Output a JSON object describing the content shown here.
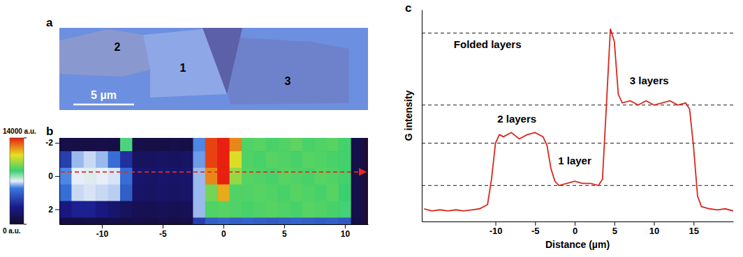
{
  "chart_data": [
    {
      "type": "image",
      "panel_label": "a",
      "region_labels": [
        "2",
        "1",
        "3"
      ],
      "scale_bar": {
        "length": 5,
        "label": "5 µm"
      }
    },
    {
      "type": "heatmap",
      "panel_label": "b",
      "x": [
        -13,
        -12,
        -11,
        -10,
        -9,
        -8,
        -7,
        -6,
        -5,
        -4,
        -3,
        -2,
        -1,
        0,
        1,
        2,
        3,
        4,
        5,
        6,
        7,
        8,
        9,
        10,
        11
      ],
      "y": [
        -2,
        -1,
        0,
        1,
        2,
        3
      ],
      "z": [
        [
          900,
          800,
          800,
          900,
          800,
          8500,
          900,
          800,
          800,
          900,
          800,
          6000,
          13500,
          14000,
          12500,
          9000,
          9100,
          8900,
          9000,
          9200,
          8900,
          9000,
          9100,
          8800,
          900
        ],
        [
          4000,
          6500,
          6800,
          6500,
          5500,
          3500,
          1500,
          1600,
          1700,
          1600,
          1700,
          6200,
          13500,
          14000,
          11000,
          9000,
          8900,
          9100,
          9000,
          8900,
          9100,
          9000,
          8900,
          8800,
          900
        ],
        [
          6000,
          7000,
          7100,
          7000,
          6900,
          5500,
          2000,
          1800,
          1900,
          1800,
          1900,
          6500,
          12500,
          14000,
          10000,
          9100,
          9000,
          8900,
          9100,
          9000,
          8900,
          9100,
          9000,
          8800,
          900
        ],
        [
          5500,
          6800,
          6900,
          6800,
          6700,
          5000,
          1800,
          1700,
          1800,
          1700,
          1800,
          6500,
          9500,
          12000,
          9000,
          9000,
          9100,
          9000,
          8900,
          9100,
          9000,
          8900,
          9100,
          8700,
          900
        ],
        [
          2500,
          3000,
          3000,
          2500,
          2000,
          1500,
          1200,
          1200,
          1300,
          1200,
          1300,
          6500,
          9000,
          9100,
          9000,
          8900,
          9000,
          9100,
          9000,
          8900,
          9100,
          9000,
          8900,
          8600,
          900
        ],
        [
          900,
          800,
          900,
          800,
          900,
          800,
          900,
          800,
          900,
          800,
          900,
          4000,
          5000,
          5200,
          5000,
          5100,
          5000,
          4900,
          5000,
          5100,
          5000,
          4900,
          5000,
          4800,
          800
        ]
      ],
      "xlim": [
        -13.5,
        11.9
      ],
      "ylim": [
        -2.3,
        2.9
      ],
      "xticks": [
        -10,
        -5,
        0,
        5,
        10
      ],
      "yticks": [
        -2,
        0,
        2
      ],
      "colorbar": {
        "range": [
          0,
          14000
        ],
        "ticks": [
          {
            "value": 14000,
            "label": "14000 a.u."
          },
          {
            "value": 0,
            "label": "0 a.u."
          }
        ]
      },
      "arrow": {
        "y": -0.25,
        "color": "#e8281e",
        "line_style": "dashed"
      }
    },
    {
      "type": "line",
      "panel_label": "c",
      "x": [
        -19,
        -18,
        -17,
        -16,
        -15,
        -14,
        -13,
        -12,
        -11,
        -10.5,
        -10,
        -9.5,
        -9,
        -8,
        -7,
        -6,
        -5,
        -4,
        -3.5,
        -3,
        -2.5,
        -2,
        -1,
        0,
        1,
        2,
        3,
        3.5,
        4,
        4.5,
        5,
        5.5,
        6,
        7,
        8,
        9,
        10,
        11,
        12,
        13,
        14,
        14.5,
        15,
        15.5,
        16,
        17,
        18,
        19,
        20
      ],
      "values": [
        0.06,
        0.05,
        0.055,
        0.05,
        0.055,
        0.05,
        0.055,
        0.06,
        0.08,
        0.2,
        0.37,
        0.41,
        0.4,
        0.42,
        0.39,
        0.41,
        0.42,
        0.4,
        0.36,
        0.25,
        0.19,
        0.17,
        0.18,
        0.19,
        0.18,
        0.18,
        0.17,
        0.2,
        0.55,
        0.91,
        0.85,
        0.6,
        0.56,
        0.57,
        0.55,
        0.57,
        0.55,
        0.56,
        0.57,
        0.55,
        0.56,
        0.53,
        0.35,
        0.12,
        0.07,
        0.06,
        0.055,
        0.06,
        0.05
      ],
      "color": "#d8281e",
      "line_style": "solid",
      "xlim": [
        -19.3,
        20
      ],
      "ylim": [
        0,
        1
      ],
      "xticks": [
        -10,
        -5,
        0,
        5,
        10,
        15
      ],
      "tick_labels": "x",
      "xlabel": "Distance (µm)",
      "ylabel": "G intensity",
      "reference_lines": [
        {
          "value": 0.89,
          "label": "Folded layers",
          "x": -11
        },
        {
          "value": 0.55,
          "label": "3 layers",
          "x": 9.4
        },
        {
          "value": 0.37,
          "label": "2 layers",
          "x": -7.3
        },
        {
          "value": 0.17,
          "label": "1 layer",
          "x": 0
        }
      ]
    }
  ]
}
